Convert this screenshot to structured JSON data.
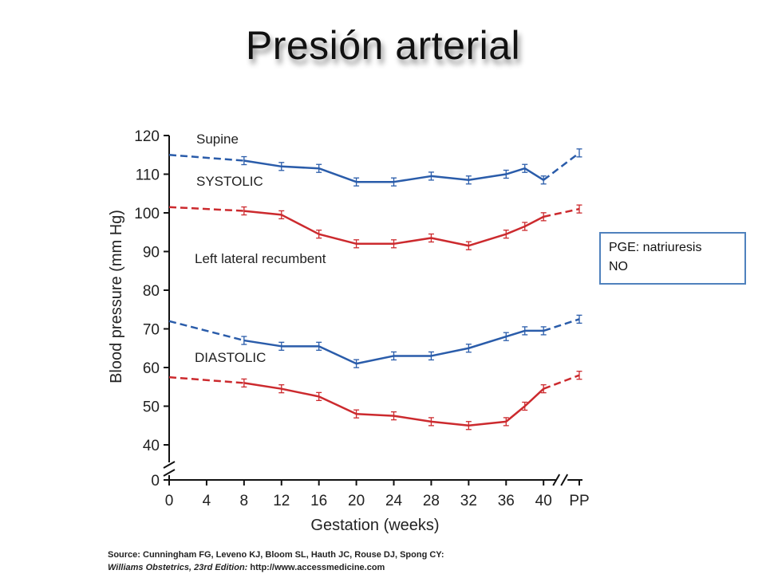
{
  "title": "Presión arterial",
  "note": {
    "line1": "PGE: natriuresis",
    "line2": "NO"
  },
  "source": {
    "line1": "Source: Cunningham FG, Leveno KJ, Bloom SL, Hauth JC, Rouse DJ, Spong CY:",
    "book": "Williams Obstetrics, 23rd Edition:",
    "url": "http://www.accessmedicine.com"
  },
  "chart_data": {
    "type": "line",
    "xlabel": "Gestation (weeks)",
    "ylabel": "Blood pressure (mm Hg)",
    "x_ticks": [
      "0",
      "4",
      "8",
      "12",
      "16",
      "20",
      "24",
      "28",
      "32",
      "36",
      "40",
      "PP"
    ],
    "y_ticks": [
      0,
      40,
      50,
      60,
      70,
      80,
      90,
      100,
      110,
      120
    ],
    "ylim": [
      40,
      120
    ],
    "y_axis_break": true,
    "x_axis_break": "between 40 and PP",
    "grid": false,
    "annotations": [
      "Supine",
      "SYSTOLIC",
      "Left lateral recumbent",
      "DIASTOLIC"
    ],
    "colors": {
      "supine": "#2a5caa",
      "left_lateral": "#cc2a2e"
    },
    "series": [
      {
        "group": "systolic-supine",
        "color": "#2a5caa",
        "x": [
          8,
          12,
          16,
          20,
          24,
          28,
          32,
          36,
          38,
          40
        ],
        "y": [
          113.5,
          112,
          111.5,
          108,
          108,
          109.5,
          108.5,
          110,
          111.5,
          108.5
        ],
        "extrapolated_start": 115,
        "pp": 115.5
      },
      {
        "group": "systolic-left-lateral",
        "color": "#cc2a2e",
        "x": [
          8,
          12,
          16,
          20,
          24,
          28,
          32,
          36,
          38,
          40
        ],
        "y": [
          100.5,
          99.5,
          94.5,
          92,
          92,
          93.5,
          91.5,
          94.5,
          96.5,
          99
        ],
        "extrapolated_start": 101.5,
        "pp": 101
      },
      {
        "group": "diastolic-supine",
        "color": "#2a5caa",
        "x": [
          8,
          12,
          16,
          20,
          24,
          28,
          32,
          36,
          38,
          40
        ],
        "y": [
          67,
          65.5,
          65.5,
          61,
          63,
          63,
          65,
          68,
          69.5,
          69.5
        ],
        "extrapolated_start": 72,
        "pp": 72.5
      },
      {
        "group": "diastolic-left-lateral",
        "color": "#cc2a2e",
        "x": [
          8,
          12,
          16,
          20,
          24,
          28,
          32,
          36,
          38,
          40
        ],
        "y": [
          56,
          54.5,
          52.5,
          48,
          47.5,
          46,
          45,
          46,
          50,
          54.5
        ],
        "extrapolated_start": 57.5,
        "pp": 58
      }
    ]
  }
}
